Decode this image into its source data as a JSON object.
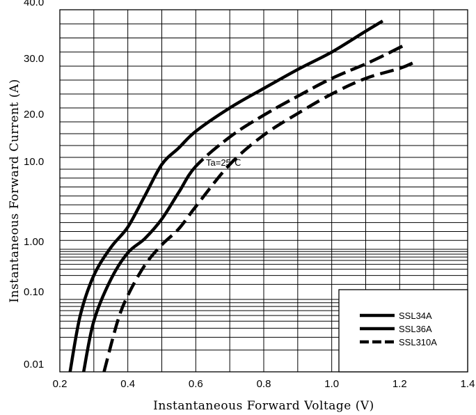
{
  "chart_data": {
    "type": "line",
    "title": "",
    "xlabel": "Instantaneous  Forward Voltage (V)",
    "ylabel": "Instantaneous  Forward Current (A)",
    "xlim": [
      0.2,
      1.4
    ],
    "x_ticks": [
      "0.2",
      "0.4",
      "0.6",
      "0.8",
      "1.0",
      "1.2",
      "1.4"
    ],
    "y_scale": "custom-log",
    "y_ticks": [
      {
        "value": 0.01,
        "label": "0.01"
      },
      {
        "value": 0.1,
        "label": "0.10"
      },
      {
        "value": 1.0,
        "label": "1.00"
      },
      {
        "value": 10.0,
        "label": "10.0"
      },
      {
        "value": 20.0,
        "label": "20.0"
      },
      {
        "value": 30.0,
        "label": "30.0"
      },
      {
        "value": 40.0,
        "label": "40.0"
      }
    ],
    "grid": true,
    "legend_position": "bottom-right",
    "annotation": "Ta=25℃",
    "series": [
      {
        "name": "SSL34A",
        "style": "solid",
        "points": [
          [
            0.23,
            0.01
          ],
          [
            0.26,
            0.06
          ],
          [
            0.3,
            0.3
          ],
          [
            0.35,
            1.2
          ],
          [
            0.4,
            3.5
          ],
          [
            0.45,
            7.0
          ],
          [
            0.5,
            11.0
          ],
          [
            0.55,
            14.5
          ],
          [
            0.6,
            18.0
          ],
          [
            0.7,
            22.5
          ],
          [
            0.8,
            26.0
          ],
          [
            0.9,
            29.4
          ],
          [
            1.0,
            32.5
          ],
          [
            1.1,
            36.2
          ],
          [
            1.15,
            38.0
          ]
        ]
      },
      {
        "name": "SSL36A",
        "style": "solid-dash",
        "points": [
          [
            0.27,
            0.01
          ],
          [
            0.3,
            0.05
          ],
          [
            0.35,
            0.25
          ],
          [
            0.4,
            0.85
          ],
          [
            0.45,
            2.2
          ],
          [
            0.5,
            4.4
          ],
          [
            0.55,
            7.4
          ],
          [
            0.6,
            10.6
          ],
          [
            0.7,
            16.8
          ],
          [
            0.8,
            21.2
          ],
          [
            0.9,
            24.6
          ],
          [
            1.0,
            27.8
          ],
          [
            1.1,
            30.4
          ],
          [
            1.15,
            31.8
          ],
          [
            1.21,
            33.6
          ]
        ]
      },
      {
        "name": "SSL310A",
        "style": "dashed",
        "points": [
          [
            0.33,
            0.01
          ],
          [
            0.37,
            0.05
          ],
          [
            0.4,
            0.12
          ],
          [
            0.45,
            0.48
          ],
          [
            0.5,
            1.5
          ],
          [
            0.55,
            3.3
          ],
          [
            0.6,
            5.8
          ],
          [
            0.7,
            11.0
          ],
          [
            0.8,
            17.2
          ],
          [
            0.9,
            21.5
          ],
          [
            1.0,
            25.0
          ],
          [
            1.1,
            27.8
          ],
          [
            1.2,
            29.6
          ],
          [
            1.24,
            30.6
          ]
        ]
      }
    ]
  }
}
